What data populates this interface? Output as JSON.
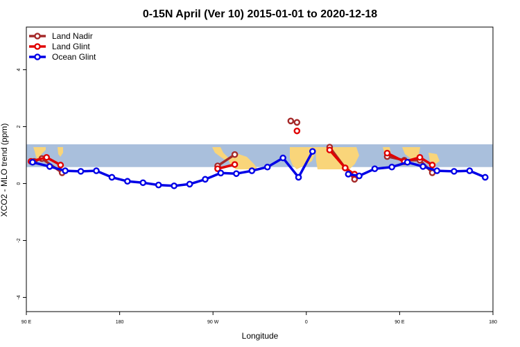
{
  "chart_data": {
    "type": "line",
    "title": "0-15N April (Ver 10)   2015-01-01 to 2020-12-18",
    "xlabel": "Longitude",
    "ylabel": "XCO2 - MLO trend (ppm)",
    "xlim": [
      -180,
      120
    ],
    "ylim": [
      -4.5,
      5.5
    ],
    "x_ticks": [
      {
        "value": -180,
        "label": "90 E"
      },
      {
        "value": -120,
        "label": "180"
      },
      {
        "value": -60,
        "label": "90 W"
      },
      {
        "value": 0,
        "label": "0"
      },
      {
        "value": 60,
        "label": "90 E"
      },
      {
        "value": 120,
        "label": "180"
      }
    ],
    "y_ticks": [
      {
        "value": -4,
        "label": "-4"
      },
      {
        "value": -2,
        "label": "-2"
      },
      {
        "value": 0,
        "label": "0"
      },
      {
        "value": 2,
        "label": "2"
      },
      {
        "value": 4,
        "label": "4"
      }
    ],
    "band": {
      "y_min": 0.58,
      "y_max": 1.38,
      "color": "#a9bfdc",
      "land_color": "#f9d57a"
    },
    "legend_position": "top-left",
    "series": [
      {
        "name": "Land Nadir",
        "color": "#a52a2a",
        "segments": [
          [
            [
              -175,
              0.78
            ],
            [
              -170,
              0.88
            ],
            [
              -157,
              0.38
            ]
          ],
          [
            [
              -57,
              0.62
            ],
            [
              -46,
              1.02
            ]
          ],
          [
            [
              -10,
              2.2
            ],
            [
              -6,
              2.15
            ]
          ],
          [
            [
              15,
              1.28
            ],
            [
              25,
              0.55
            ],
            [
              31,
              0.15
            ]
          ],
          [
            [
              52,
              0.95
            ],
            [
              63,
              0.82
            ],
            [
              73,
              0.82
            ],
            [
              81,
              0.38
            ]
          ]
        ]
      },
      {
        "name": "Land Glint",
        "color": "#e00000",
        "segments": [
          [
            [
              -177,
              0.78
            ],
            [
              -167,
              0.92
            ],
            [
              -158,
              0.65
            ]
          ],
          [
            [
              -57,
              0.52
            ],
            [
              -46,
              0.67
            ]
          ],
          [
            [
              -6,
              1.85
            ]
          ],
          [
            [
              15,
              1.18
            ],
            [
              25,
              0.55
            ],
            [
              31,
              0.33
            ]
          ],
          [
            [
              52,
              1.07
            ],
            [
              63,
              0.77
            ],
            [
              73,
              0.92
            ],
            [
              81,
              0.65
            ]
          ]
        ]
      },
      {
        "name": "Ocean Glint",
        "color": "#0000e6",
        "segments": [
          [
            [
              -176,
              0.75
            ],
            [
              -165,
              0.6
            ],
            [
              -155,
              0.45
            ],
            [
              -145,
              0.43
            ],
            [
              -135,
              0.45
            ],
            [
              -125,
              0.22
            ],
            [
              -115,
              0.08
            ],
            [
              -105,
              0.03
            ],
            [
              -95,
              -0.05
            ],
            [
              -85,
              -0.08
            ],
            [
              -75,
              -0.02
            ],
            [
              -65,
              0.15
            ],
            [
              -55,
              0.37
            ],
            [
              -45,
              0.35
            ],
            [
              -35,
              0.45
            ],
            [
              -25,
              0.58
            ],
            [
              -15,
              0.9
            ],
            [
              -5,
              0.22
            ],
            [
              4,
              1.13
            ]
          ],
          [
            [
              27,
              0.33
            ],
            [
              34,
              0.27
            ],
            [
              44,
              0.52
            ],
            [
              55,
              0.58
            ],
            [
              65,
              0.75
            ],
            [
              75,
              0.6
            ],
            [
              84,
              0.45
            ],
            [
              95,
              0.43
            ],
            [
              105,
              0.45
            ],
            [
              115,
              0.22
            ]
          ]
        ]
      }
    ]
  }
}
